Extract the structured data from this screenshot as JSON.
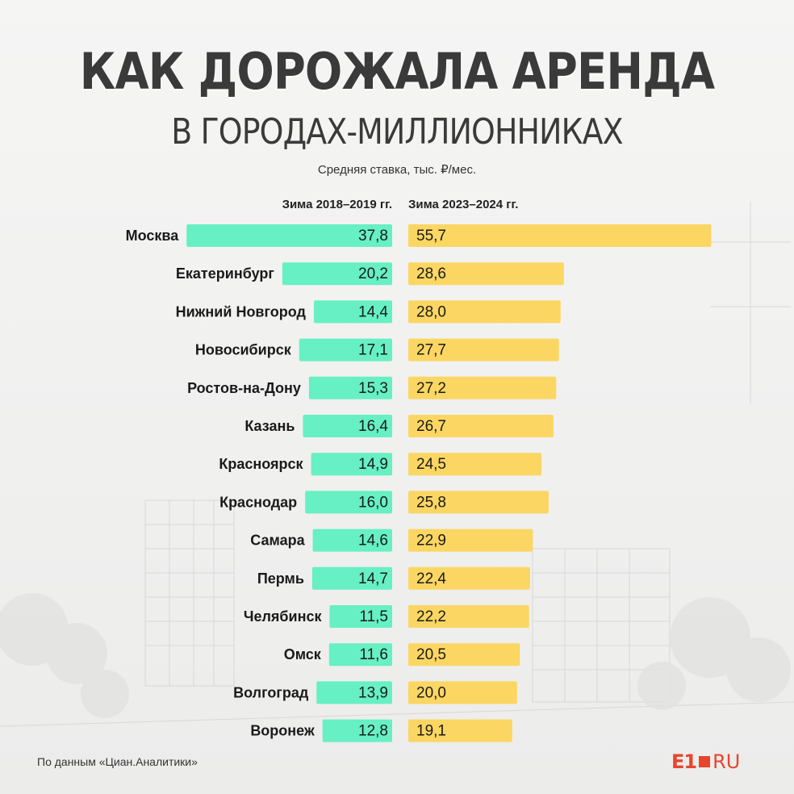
{
  "header": {
    "title": "КАК ДОРОЖАЛА АРЕНДА",
    "subtitle": "В ГОРОДАХ-МИЛЛИОННИКАХ",
    "units": "Средняя ставка, тыс. ₽/мес."
  },
  "chart_data": {
    "type": "bar",
    "orientation": "horizontal-diverging",
    "title": "КАК ДОРОЖАЛА АРЕНДА В ГОРОДАХ-МИЛЛИОННИКАХ",
    "units": "тыс. ₽/мес.",
    "categories": [
      "Москва",
      "Екатеринбург",
      "Нижний Новгород",
      "Новосибирск",
      "Ростов-на-Дону",
      "Казань",
      "Красноярск",
      "Краснодар",
      "Самара",
      "Пермь",
      "Челябинск",
      "Омск",
      "Волгоград",
      "Воронеж"
    ],
    "series": [
      {
        "name": "Зима 2018–2019 гг.",
        "color": "#66f0c4",
        "values": [
          37.8,
          20.2,
          14.4,
          17.1,
          15.3,
          16.4,
          14.9,
          16.0,
          14.6,
          14.7,
          11.5,
          11.6,
          13.9,
          12.8
        ],
        "labels": [
          "37,8",
          "20,2",
          "14,4",
          "17,1",
          "15,3",
          "16,4",
          "14,9",
          "16,0",
          "14,6",
          "14,7",
          "11,5",
          "11,6",
          "13,9",
          "12,8"
        ]
      },
      {
        "name": "Зима 2023–2024 гг.",
        "color": "#fbd662",
        "values": [
          55.7,
          28.6,
          28.0,
          27.7,
          27.2,
          26.7,
          24.5,
          25.8,
          22.9,
          22.4,
          22.2,
          20.5,
          20.0,
          19.1
        ],
        "labels": [
          "55,7",
          "28,6",
          "28,0",
          "27,7",
          "27,2",
          "26,7",
          "24,5",
          "25,8",
          "22,9",
          "22,4",
          "22,2",
          "20,5",
          "20,0",
          "19,1"
        ]
      }
    ]
  },
  "footer": {
    "source": "По данным «Циан.Аналитики»",
    "logo_main": "E1",
    "logo_suffix": "RU"
  }
}
